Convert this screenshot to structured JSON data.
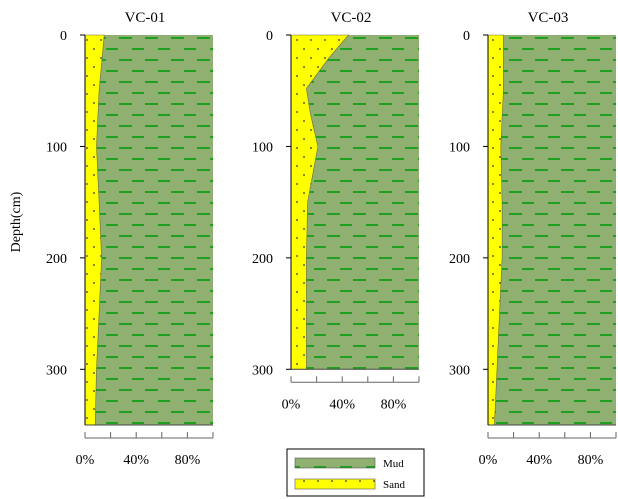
{
  "chart_data": {
    "type": "area",
    "ylabel": "Depth(cm)",
    "ytick_labels": [
      "0",
      "100",
      "200",
      "300"
    ],
    "xtick_labels": [
      "0%",
      "40%",
      "80%"
    ],
    "colors": {
      "sand": "#ffff00",
      "mud": "#8fb070",
      "mud_dash": "#20a020",
      "axis": "#000000",
      "tick": "#666666"
    },
    "legend": {
      "position": "bottom-center",
      "entries": [
        {
          "label": "Mud",
          "color": "#8fb070",
          "pattern": "green-dashes"
        },
        {
          "label": "Sand",
          "color": "#ffff00",
          "pattern": "dots"
        }
      ]
    },
    "panels": [
      {
        "title": "VC-01",
        "ylim": [
          0,
          350
        ],
        "xlim": [
          0,
          100
        ],
        "sand_profile": [
          {
            "depth": 0,
            "sand_pct": 15
          },
          {
            "depth": 50,
            "sand_pct": 11
          },
          {
            "depth": 100,
            "sand_pct": 9
          },
          {
            "depth": 150,
            "sand_pct": 11
          },
          {
            "depth": 200,
            "sand_pct": 13
          },
          {
            "depth": 250,
            "sand_pct": 11
          },
          {
            "depth": 300,
            "sand_pct": 9
          },
          {
            "depth": 350,
            "sand_pct": 8
          }
        ]
      },
      {
        "title": "VC-02",
        "ylim": [
          0,
          300
        ],
        "xlim": [
          0,
          100
        ],
        "sand_profile": [
          {
            "depth": 0,
            "sand_pct": 45
          },
          {
            "depth": 20,
            "sand_pct": 30
          },
          {
            "depth": 48,
            "sand_pct": 12
          },
          {
            "depth": 70,
            "sand_pct": 15
          },
          {
            "depth": 100,
            "sand_pct": 21
          },
          {
            "depth": 150,
            "sand_pct": 13
          },
          {
            "depth": 200,
            "sand_pct": 12
          },
          {
            "depth": 250,
            "sand_pct": 12
          },
          {
            "depth": 300,
            "sand_pct": 12
          }
        ]
      },
      {
        "title": "VC-03",
        "ylim": [
          0,
          350
        ],
        "xlim": [
          0,
          100
        ],
        "sand_profile": [
          {
            "depth": 0,
            "sand_pct": 12
          },
          {
            "depth": 50,
            "sand_pct": 12
          },
          {
            "depth": 100,
            "sand_pct": 10
          },
          {
            "depth": 150,
            "sand_pct": 11
          },
          {
            "depth": 200,
            "sand_pct": 11
          },
          {
            "depth": 250,
            "sand_pct": 9
          },
          {
            "depth": 300,
            "sand_pct": 7
          },
          {
            "depth": 350,
            "sand_pct": 5
          }
        ]
      }
    ]
  }
}
